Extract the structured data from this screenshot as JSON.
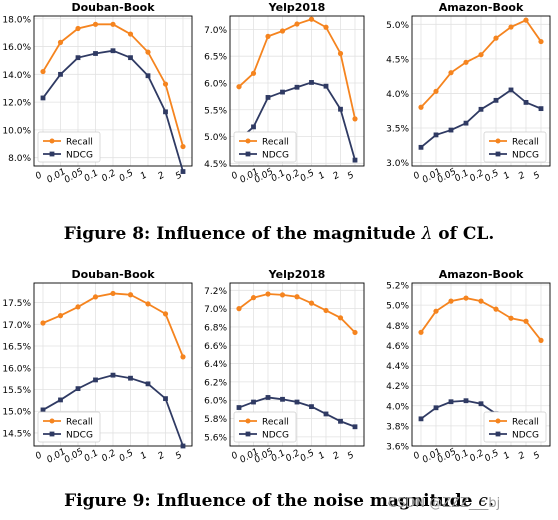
{
  "chart_data": [
    {
      "type": "line",
      "title": "Douban-Book",
      "categories": [
        "0",
        "0.01",
        "0.05",
        "0.1",
        "0.2",
        "0.5",
        "1",
        "2",
        "5"
      ],
      "ylim": [
        7.4,
        18.2
      ],
      "yticks": [
        "8.0%",
        "10.0%",
        "12.0%",
        "14.0%",
        "16.0%",
        "18.0%"
      ],
      "ytick_values": [
        8,
        10,
        12,
        14,
        16,
        18
      ],
      "legend": "lower-left",
      "series": [
        {
          "name": "Recall",
          "color": "#f5841f",
          "marker": "circle",
          "values": [
            14.2,
            16.3,
            17.3,
            17.6,
            17.6,
            16.9,
            15.6,
            13.3,
            8.8
          ]
        },
        {
          "name": "NDCG",
          "color": "#2f3a63",
          "marker": "square",
          "values": [
            12.3,
            14.0,
            15.2,
            15.5,
            15.7,
            15.2,
            13.9,
            11.3,
            7.0
          ]
        }
      ]
    },
    {
      "type": "line",
      "title": "Yelp2018",
      "categories": [
        "0",
        "0.01",
        "0.05",
        "0.1",
        "0.2",
        "0.5",
        "1",
        "2",
        "5"
      ],
      "ylim": [
        4.45,
        7.25
      ],
      "yticks": [
        "4.5%",
        "5.0%",
        "5.5%",
        "6.0%",
        "6.5%",
        "7.0%"
      ],
      "ytick_values": [
        4.5,
        5.0,
        5.5,
        6.0,
        6.5,
        7.0
      ],
      "legend": "lower-left",
      "series": [
        {
          "name": "Recall",
          "color": "#f5841f",
          "marker": "circle",
          "values": [
            5.93,
            6.18,
            6.87,
            6.97,
            7.1,
            7.19,
            7.04,
            6.55,
            5.33
          ]
        },
        {
          "name": "NDCG",
          "color": "#2f3a63",
          "marker": "square",
          "values": [
            4.94,
            5.18,
            5.73,
            5.83,
            5.92,
            6.01,
            5.94,
            5.51,
            4.56
          ]
        }
      ]
    },
    {
      "type": "line",
      "title": "Amazon-Book",
      "categories": [
        "0",
        "0.01",
        "0.05",
        "0.1",
        "0.2",
        "0.5",
        "1",
        "2",
        "5"
      ],
      "ylim": [
        2.95,
        5.12
      ],
      "yticks": [
        "3.0%",
        "3.5%",
        "4.0%",
        "4.5%",
        "5.0%"
      ],
      "ytick_values": [
        3.0,
        3.5,
        4.0,
        4.5,
        5.0
      ],
      "legend": "lower-right",
      "series": [
        {
          "name": "Recall",
          "color": "#f5841f",
          "marker": "circle",
          "values": [
            3.8,
            4.03,
            4.3,
            4.45,
            4.56,
            4.8,
            4.96,
            5.06,
            4.75
          ]
        },
        {
          "name": "NDCG",
          "color": "#2f3a63",
          "marker": "square",
          "values": [
            3.22,
            3.4,
            3.47,
            3.57,
            3.77,
            3.9,
            4.05,
            3.87,
            3.78
          ]
        }
      ]
    },
    {
      "type": "line",
      "title": "Douban-Book",
      "categories": [
        "0",
        "0.01",
        "0.05",
        "0.1",
        "0.2",
        "0.5",
        "1",
        "2",
        "5"
      ],
      "ylim": [
        14.2,
        17.95
      ],
      "yticks": [
        "14.5%",
        "15.0%",
        "15.5%",
        "16.0%",
        "16.5%",
        "17.0%",
        "17.5%"
      ],
      "ytick_values": [
        14.5,
        15.0,
        15.5,
        16.0,
        16.5,
        17.0,
        17.5
      ],
      "legend": "lower-left",
      "series": [
        {
          "name": "Recall",
          "color": "#f5841f",
          "marker": "circle",
          "values": [
            17.03,
            17.2,
            17.4,
            17.63,
            17.71,
            17.68,
            17.47,
            17.24,
            16.25
          ]
        },
        {
          "name": "NDCG",
          "color": "#2f3a63",
          "marker": "square",
          "values": [
            15.03,
            15.26,
            15.52,
            15.72,
            15.83,
            15.76,
            15.63,
            15.29,
            14.2
          ]
        }
      ]
    },
    {
      "type": "line",
      "title": "Yelp2018",
      "categories": [
        "0",
        "0.01",
        "0.05",
        "0.1",
        "0.2",
        "0.5",
        "1",
        "2",
        "5"
      ],
      "ylim": [
        5.5,
        7.28
      ],
      "yticks": [
        "5.6%",
        "5.8%",
        "6.0%",
        "6.2%",
        "6.4%",
        "6.6%",
        "6.8%",
        "7.0%",
        "7.2%"
      ],
      "ytick_values": [
        5.6,
        5.8,
        6.0,
        6.2,
        6.4,
        6.6,
        6.8,
        7.0,
        7.2
      ],
      "legend": "lower-left",
      "series": [
        {
          "name": "Recall",
          "color": "#f5841f",
          "marker": "circle",
          "values": [
            7.0,
            7.12,
            7.16,
            7.15,
            7.13,
            7.06,
            6.98,
            6.9,
            6.74
          ]
        },
        {
          "name": "NDCG",
          "color": "#2f3a63",
          "marker": "square",
          "values": [
            5.92,
            5.98,
            6.03,
            6.01,
            5.98,
            5.93,
            5.85,
            5.77,
            5.71
          ]
        }
      ]
    },
    {
      "type": "line",
      "title": "Amazon-Book",
      "categories": [
        "0",
        "0.01",
        "0.05",
        "0.1",
        "0.2",
        "0.5",
        "1",
        "2",
        "5"
      ],
      "ylim": [
        3.6,
        5.22
      ],
      "yticks": [
        "3.6%",
        "3.8%",
        "4.0%",
        "4.2%",
        "4.4%",
        "4.6%",
        "4.8%",
        "5.0%",
        "5.2%"
      ],
      "ytick_values": [
        3.6,
        3.8,
        4.0,
        4.2,
        4.4,
        4.6,
        4.8,
        5.0,
        5.2
      ],
      "legend": "lower-right",
      "series": [
        {
          "name": "Recall",
          "color": "#f5841f",
          "marker": "circle",
          "values": [
            4.73,
            4.94,
            5.04,
            5.07,
            5.04,
            4.96,
            4.87,
            4.84,
            4.65
          ]
        },
        {
          "name": "NDCG",
          "color": "#2f3a63",
          "marker": "square",
          "values": [
            3.87,
            3.98,
            4.04,
            4.05,
            4.02,
            3.92,
            3.84,
            3.82,
            3.71
          ]
        }
      ]
    }
  ],
  "captions": {
    "fig8_text": "Figure 8: Influence of the magnitude ",
    "fig8_symbol": "λ",
    "fig8_suffix": " of CL.",
    "fig9_text": "Figure 9: Influence of the noise magnitude ",
    "fig9_symbol": "ϵ",
    "fig9_suffix": "."
  },
  "watermark": "CSDN @ZZZ___bj"
}
